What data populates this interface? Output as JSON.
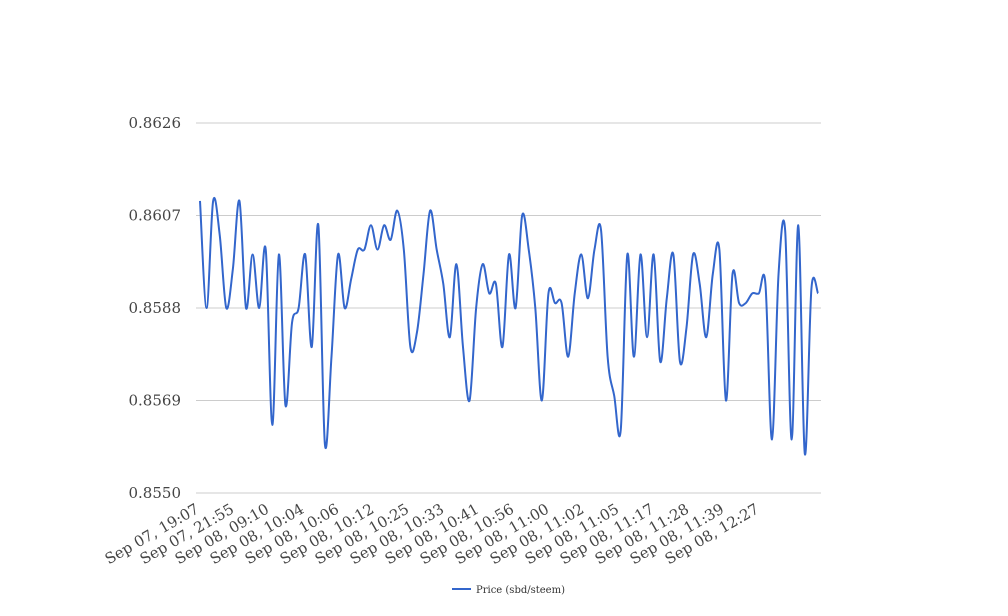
{
  "chart_data": {
    "type": "line",
    "title": "",
    "xlabel": "",
    "ylabel": "",
    "ylim": [
      0.855,
      0.8626
    ],
    "yticks": [
      "0.8550",
      "0.8569",
      "0.8588",
      "0.8607",
      "0.8626"
    ],
    "xtick_labels": [
      "Sep 07, 19:07",
      "Sep 07, 21:55",
      "Sep 08, 09:10",
      "Sep 08, 10:04",
      "Sep 08, 10:06",
      "Sep 08, 10:12",
      "Sep 08, 10:25",
      "Sep 08, 10:33",
      "Sep 08, 10:41",
      "Sep 08, 10:56",
      "Sep 08, 11:00",
      "Sep 08, 11:02",
      "Sep 08, 11:05",
      "Sep 08, 11:17",
      "Sep 08, 11:28",
      "Sep 08, 11:39",
      "Sep 08, 12:27"
    ],
    "grid": true,
    "legend_position": "bottom",
    "series": [
      {
        "name": "Price (sbd/steem)",
        "color": "#3366cc",
        "values": [
          0.861,
          0.8588,
          0.861,
          0.8603,
          0.8588,
          0.8596,
          0.861,
          0.8588,
          0.8599,
          0.8588,
          0.86,
          0.8564,
          0.8599,
          0.8568,
          0.8585,
          0.8588,
          0.8599,
          0.858,
          0.8605,
          0.856,
          0.8578,
          0.8599,
          0.8588,
          0.8594,
          0.86,
          0.86,
          0.8605,
          0.86,
          0.8605,
          0.8602,
          0.8608,
          0.86,
          0.858,
          0.8583,
          0.8595,
          0.8608,
          0.86,
          0.8593,
          0.8582,
          0.8597,
          0.858,
          0.8569,
          0.8588,
          0.8597,
          0.8591,
          0.8593,
          0.858,
          0.8599,
          0.8588,
          0.8607,
          0.86,
          0.8588,
          0.8569,
          0.8591,
          0.8589,
          0.8589,
          0.8578,
          0.8591,
          0.8599,
          0.859,
          0.86,
          0.8604,
          0.8578,
          0.857,
          0.8563,
          0.8599,
          0.8578,
          0.8599,
          0.8582,
          0.8599,
          0.8577,
          0.859,
          0.8599,
          0.8577,
          0.8584,
          0.8599,
          0.8593,
          0.8582,
          0.8595,
          0.86,
          0.8569,
          0.8595,
          0.8589,
          0.8589,
          0.8591,
          0.8591,
          0.8593,
          0.8561,
          0.8595,
          0.8604,
          0.8561,
          0.8605,
          0.8558,
          0.8592,
          0.8591
        ]
      }
    ]
  }
}
